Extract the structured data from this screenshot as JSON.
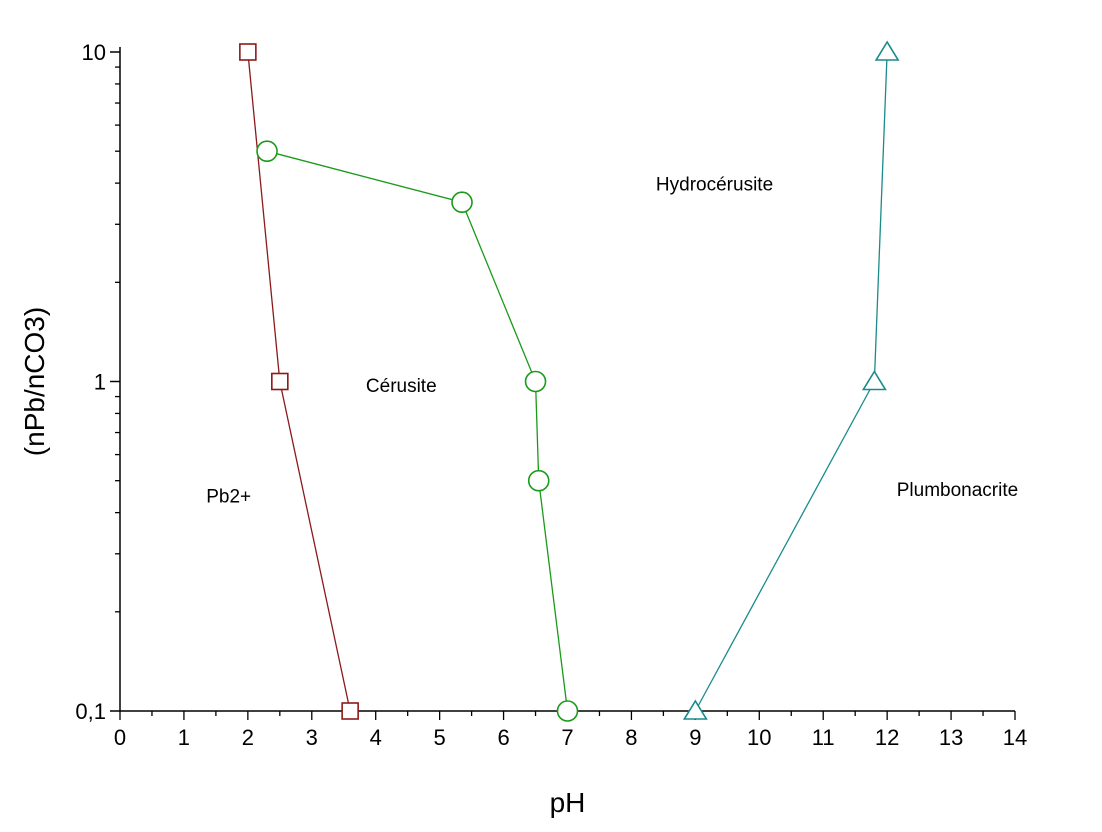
{
  "chart_data": {
    "type": "scatter",
    "title": "",
    "xlabel": "pH",
    "ylabel": "(nPb/nCO3)",
    "xlim": [
      0,
      14
    ],
    "ylim": [
      0.1,
      10
    ],
    "yscale": "log",
    "x_ticks": [
      "0",
      "1",
      "2",
      "3",
      "4",
      "5",
      "6",
      "7",
      "8",
      "9",
      "10",
      "11",
      "12",
      "13",
      "14"
    ],
    "y_ticks": [
      {
        "value": 0.1,
        "label": "0,1"
      },
      {
        "value": 1,
        "label": "1"
      },
      {
        "value": 10,
        "label": "10"
      }
    ],
    "grid": false,
    "legend": "none",
    "series": [
      {
        "marker": "square",
        "color": "#8b1a1a",
        "points": [
          {
            "x": 2.0,
            "y": 10
          },
          {
            "x": 2.5,
            "y": 1
          },
          {
            "x": 3.6,
            "y": 0.1
          }
        ]
      },
      {
        "marker": "circle",
        "color": "#1a9a1a",
        "points": [
          {
            "x": 2.3,
            "y": 5
          },
          {
            "x": 5.35,
            "y": 3.5
          },
          {
            "x": 6.5,
            "y": 1
          },
          {
            "x": 6.55,
            "y": 0.5
          },
          {
            "x": 7.0,
            "y": 0.1
          }
        ]
      },
      {
        "marker": "triangle",
        "color": "#1a8a8a",
        "points": [
          {
            "x": 12.0,
            "y": 10
          },
          {
            "x": 11.8,
            "y": 1
          },
          {
            "x": 9.0,
            "y": 0.1
          }
        ]
      }
    ],
    "annotations": [
      {
        "text": "Hydrocérusite",
        "x": 9.3,
        "y": 3.8
      },
      {
        "text": "Cérusite",
        "x": 4.4,
        "y": 0.93
      },
      {
        "text": "Pb2+",
        "x": 1.7,
        "y": 0.43
      },
      {
        "text": "Plumbonacrite",
        "x": 13.1,
        "y": 0.45
      }
    ]
  }
}
